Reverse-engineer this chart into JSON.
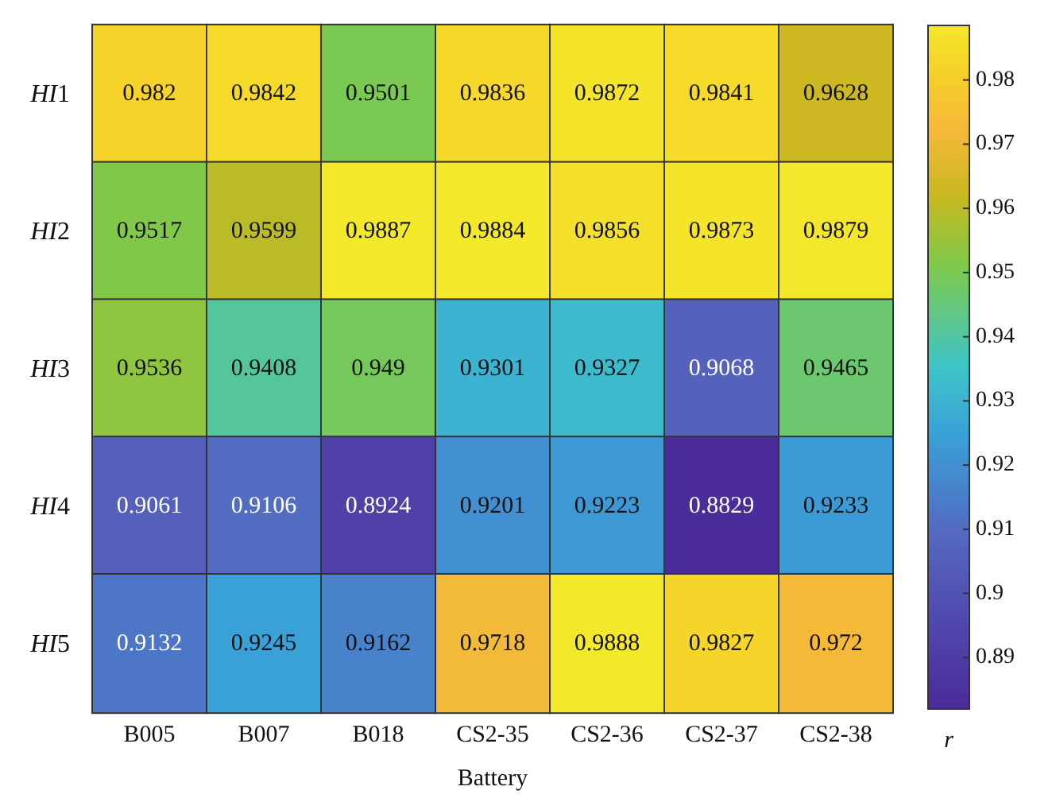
{
  "chart_data": {
    "type": "heatmap",
    "xlabel": "Battery",
    "clabel": "r",
    "categories": [
      "B005",
      "B007",
      "B018",
      "CS2-35",
      "CS2-36",
      "CS2-37",
      "CS2-38"
    ],
    "y_categories": [
      "HI1",
      "HI2",
      "HI3",
      "HI4",
      "HI5"
    ],
    "cells": [
      [
        0.982,
        0.9842,
        0.9501,
        0.9836,
        0.9872,
        0.9841,
        0.9628
      ],
      [
        0.9517,
        0.9599,
        0.9887,
        0.9884,
        0.9856,
        0.9873,
        0.9879
      ],
      [
        0.9536,
        0.9408,
        0.949,
        0.9301,
        0.9327,
        0.9068,
        0.9465
      ],
      [
        0.9061,
        0.9106,
        0.8924,
        0.9201,
        0.9223,
        0.8829,
        0.9233
      ],
      [
        0.9132,
        0.9245,
        0.9162,
        0.9718,
        0.9888,
        0.9827,
        0.972
      ]
    ],
    "data_labels": true,
    "clim": [
      0.882,
      0.9885
    ],
    "cticks": [
      0.89,
      0.9,
      0.91,
      0.92,
      0.93,
      0.94,
      0.95,
      0.96,
      0.97,
      0.98
    ]
  }
}
